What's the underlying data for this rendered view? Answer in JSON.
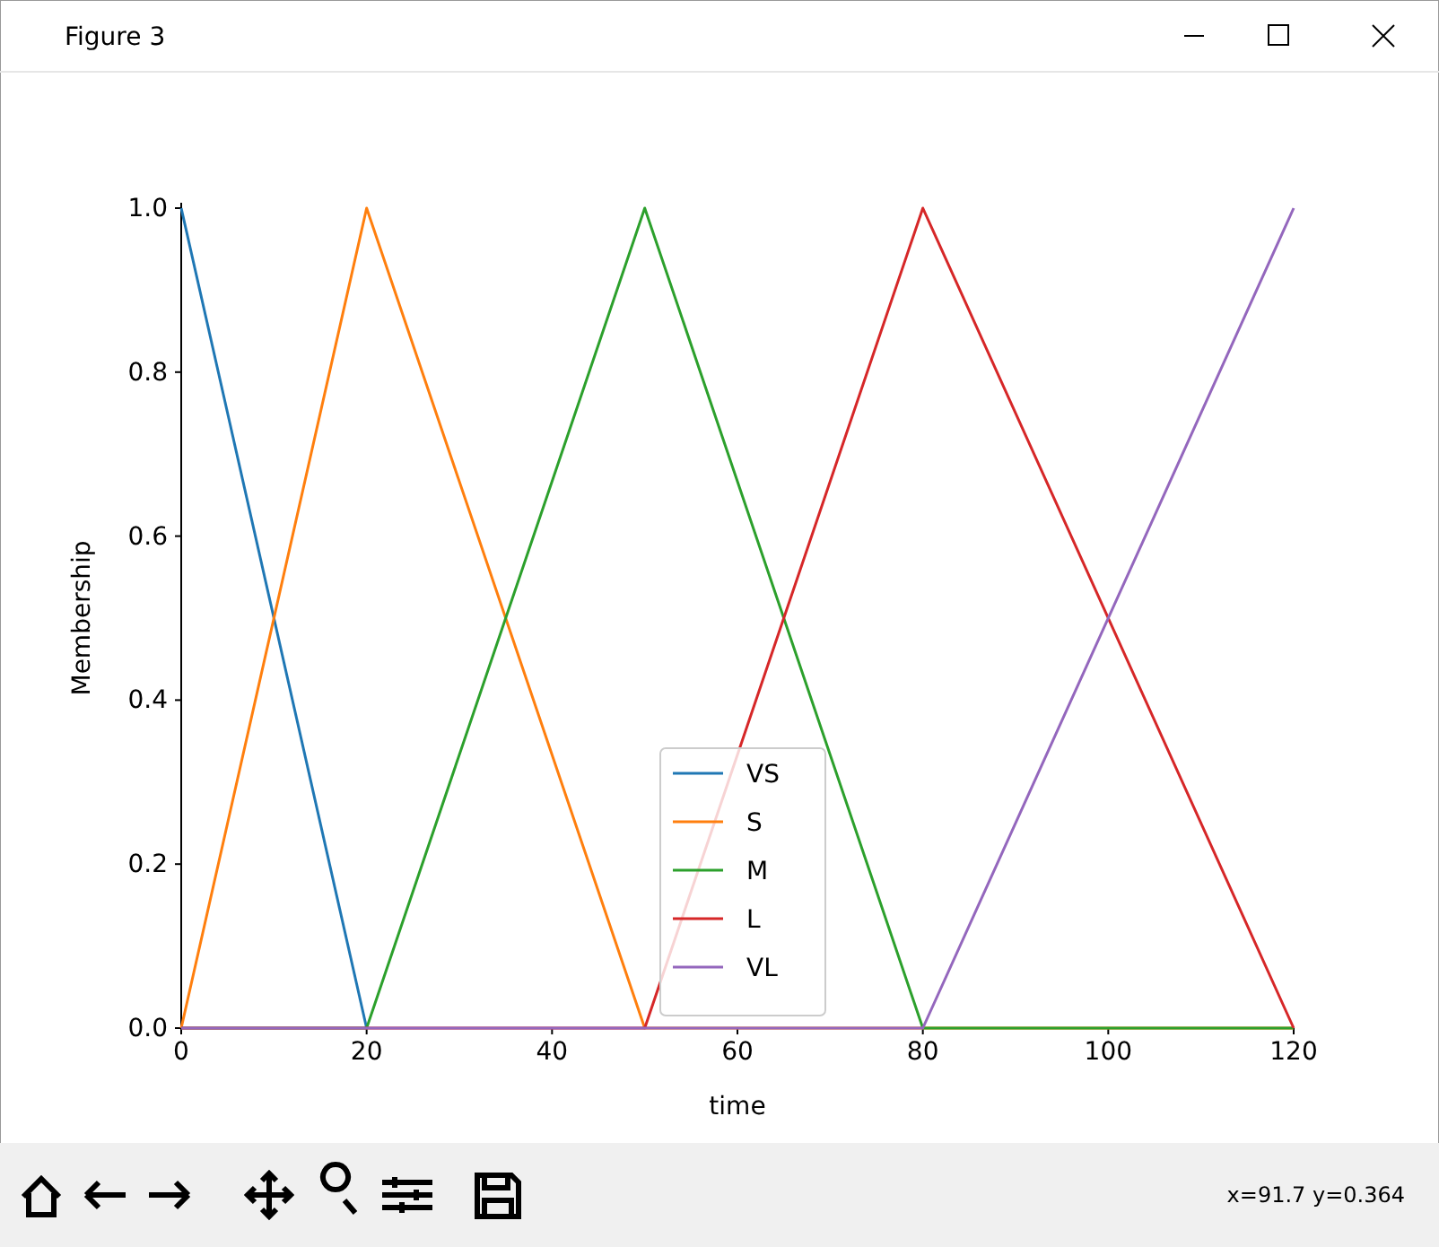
{
  "chart_data": {
    "type": "line",
    "xlabel": "time",
    "ylabel": "Membership",
    "annotations": [
      "Figure 3",
      "x=91.7 y=0.364"
    ],
    "xlim": [
      0,
      120
    ],
    "ylim": [
      0,
      1
    ],
    "xticks": [
      0,
      20,
      40,
      60,
      80,
      100,
      120
    ],
    "yticks": [
      {
        "value": 0,
        "label": "0.0"
      },
      {
        "value": 0.2,
        "label": "0.2"
      },
      {
        "value": 0.4,
        "label": "0.4"
      },
      {
        "value": 0.6,
        "label": "0.6"
      },
      {
        "value": 0.8,
        "label": "0.8"
      },
      {
        "value": 1,
        "label": "1.0"
      }
    ],
    "legend": "bottom",
    "series": [
      {
        "name": "VS",
        "color": "#1f77b4",
        "x": [
          0,
          20
        ],
        "values": [
          1,
          0
        ]
      },
      {
        "name": "S",
        "color": "#ff7f0e",
        "x": [
          0,
          20,
          50,
          120
        ],
        "values": [
          0,
          1,
          0,
          0
        ]
      },
      {
        "name": "M",
        "color": "#2ca02c",
        "x": [
          0,
          20,
          50,
          80,
          120
        ],
        "values": [
          0,
          0,
          1,
          0,
          0
        ]
      },
      {
        "name": "L",
        "color": "#d62728",
        "x": [
          0,
          50,
          80,
          120
        ],
        "values": [
          0,
          0,
          1,
          0
        ]
      },
      {
        "name": "VL",
        "color": "#9467bd",
        "x": [
          0,
          80,
          120
        ],
        "values": [
          0,
          0,
          1
        ]
      }
    ]
  }
}
